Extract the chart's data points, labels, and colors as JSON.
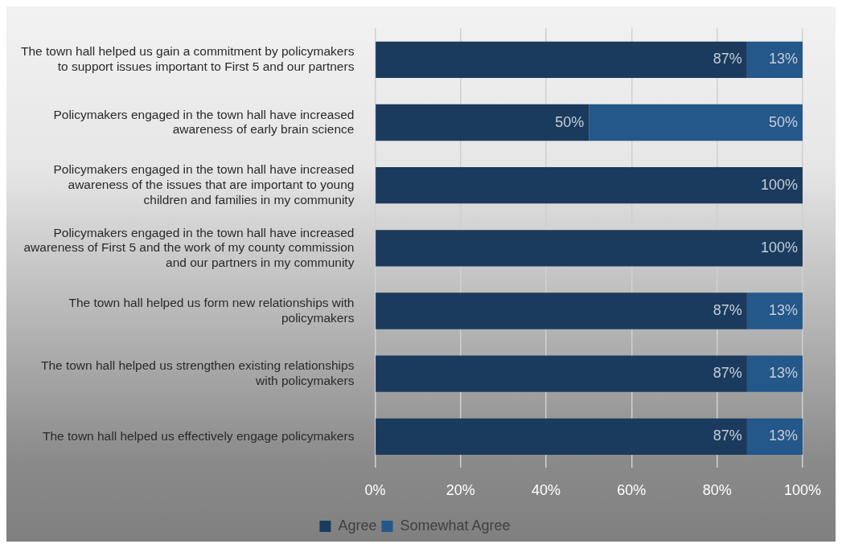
{
  "chart_data": {
    "type": "bar",
    "orientation": "horizontal",
    "stacked": true,
    "categories": [
      "The town hall helped us gain a commitment by policymakers to support issues important to First 5 and our partners",
      "Policymakers engaged in the town hall have increased awareness of early brain science",
      "Policymakers engaged in the town hall have increased awareness of the issues that are important to young children and families in my community",
      "Policymakers engaged in the town hall have increased awareness of First 5 and the work of my county commission and our partners in my community",
      "The town hall helped us form new relationships with policymakers",
      "The town hall helped us strengthen existing relationships with policymakers",
      "The town hall helped us effectively engage policymakers"
    ],
    "series": [
      {
        "name": "Agree",
        "color": "#1a3b5e",
        "values": [
          87,
          50,
          100,
          100,
          87,
          87,
          87
        ],
        "value_labels": [
          "87%",
          "50%",
          "100%",
          "100%",
          "87%",
          "87%",
          "87%"
        ]
      },
      {
        "name": "Somewhat Agree",
        "color": "#24578a",
        "values": [
          13,
          50,
          null,
          null,
          13,
          13,
          13
        ],
        "value_labels": [
          "13%",
          "50%",
          null,
          null,
          "13%",
          "13%",
          "13%"
        ]
      }
    ],
    "xlim": [
      0,
      100
    ],
    "xticks": [
      {
        "value": 0,
        "label": "0%"
      },
      {
        "value": 20,
        "label": "20%"
      },
      {
        "value": 40,
        "label": "40%"
      },
      {
        "value": 60,
        "label": "60%"
      },
      {
        "value": 80,
        "label": "80%"
      },
      {
        "value": 100,
        "label": "100%"
      }
    ],
    "grid": "x",
    "legend": "bottom"
  }
}
